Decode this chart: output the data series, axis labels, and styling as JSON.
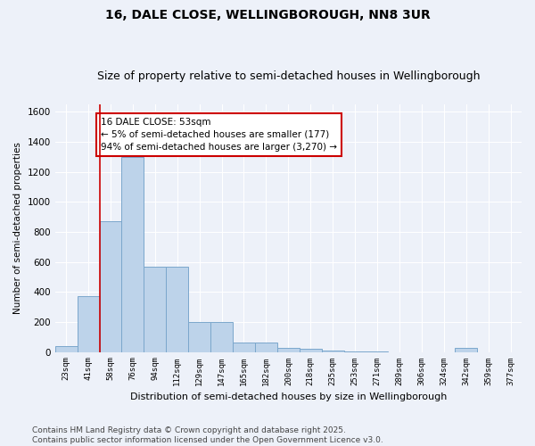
{
  "title": "16, DALE CLOSE, WELLINGBOROUGH, NN8 3UR",
  "subtitle": "Size of property relative to semi-detached houses in Wellingborough",
  "xlabel": "Distribution of semi-detached houses by size in Wellingborough",
  "ylabel": "Number of semi-detached properties",
  "bin_labels": [
    "23sqm",
    "41sqm",
    "58sqm",
    "76sqm",
    "94sqm",
    "112sqm",
    "129sqm",
    "147sqm",
    "165sqm",
    "182sqm",
    "200sqm",
    "218sqm",
    "235sqm",
    "253sqm",
    "271sqm",
    "289sqm",
    "306sqm",
    "324sqm",
    "342sqm",
    "359sqm",
    "377sqm"
  ],
  "bar_values": [
    40,
    370,
    870,
    1300,
    570,
    570,
    200,
    200,
    60,
    60,
    30,
    20,
    10,
    5,
    5,
    0,
    0,
    0,
    30,
    0,
    0
  ],
  "bar_color": "#bdd3ea",
  "bar_edge_color": "#7ba7cc",
  "vline_x_idx": 1.5,
  "vline_color": "#cc0000",
  "annotation_text": "16 DALE CLOSE: 53sqm\n← 5% of semi-detached houses are smaller (177)\n94% of semi-detached houses are larger (3,270) →",
  "annotation_box_color": "#ffffff",
  "annotation_box_edge": "#cc0000",
  "ylim": [
    0,
    1650
  ],
  "yticks": [
    0,
    200,
    400,
    600,
    800,
    1000,
    1200,
    1400,
    1600
  ],
  "background_color": "#edf1f9",
  "grid_color": "#ffffff",
  "footer_text": "Contains HM Land Registry data © Crown copyright and database right 2025.\nContains public sector information licensed under the Open Government Licence v3.0.",
  "title_fontsize": 10,
  "subtitle_fontsize": 9,
  "annotation_fontsize": 7.5,
  "ylabel_fontsize": 7.5,
  "xlabel_fontsize": 8,
  "ytick_fontsize": 7.5,
  "xtick_fontsize": 6.5,
  "footer_fontsize": 6.5
}
